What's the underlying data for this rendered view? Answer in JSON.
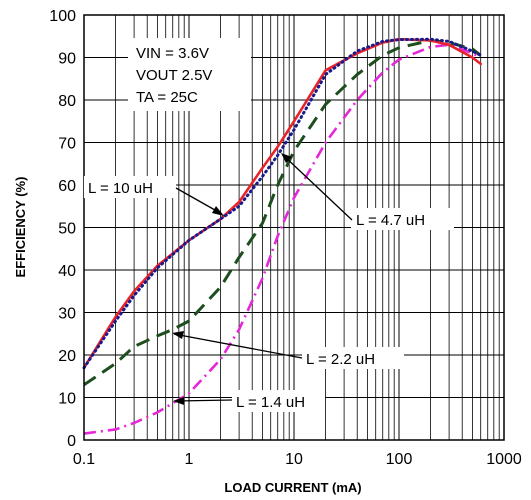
{
  "chart_data": {
    "type": "line",
    "title": "",
    "xlabel": "LOAD CURRENT (mA)",
    "ylabel": "EFFICIENCY (%)",
    "xscale": "log",
    "xlim": [
      0.1,
      1000
    ],
    "ylim": [
      0,
      100
    ],
    "x_ticks": [
      "0.1",
      "1",
      "10",
      "100",
      "1000"
    ],
    "y_ticks": [
      "0",
      "10",
      "20",
      "30",
      "40",
      "50",
      "60",
      "70",
      "80",
      "90",
      "100"
    ],
    "grid": true,
    "conditions": [
      "VIN = 3.6V",
      "VOUT 2.5V",
      "TA = 25C"
    ],
    "series": [
      {
        "name": "L = 10 uH",
        "color": "#e8232a",
        "style": "solid",
        "points": [
          [
            0.1,
            17
          ],
          [
            0.2,
            29
          ],
          [
            0.3,
            35
          ],
          [
            0.5,
            41
          ],
          [
            1,
            47
          ],
          [
            2,
            52
          ],
          [
            3,
            56
          ],
          [
            5,
            64
          ],
          [
            7,
            69
          ],
          [
            10,
            75
          ],
          [
            20,
            87
          ],
          [
            40,
            91
          ],
          [
            70,
            93.5
          ],
          [
            100,
            94.3
          ],
          [
            200,
            94
          ],
          [
            300,
            93
          ],
          [
            500,
            90
          ],
          [
            600,
            88.5
          ]
        ]
      },
      {
        "name": "L = 4.7 uH",
        "color": "#1a1a8c",
        "style": "dotted",
        "points": [
          [
            0.1,
            17
          ],
          [
            0.2,
            28
          ],
          [
            0.3,
            34
          ],
          [
            0.5,
            40.5
          ],
          [
            1,
            47
          ],
          [
            2,
            52
          ],
          [
            3,
            55
          ],
          [
            5,
            62
          ],
          [
            7,
            67
          ],
          [
            10,
            73
          ],
          [
            20,
            86
          ],
          [
            40,
            91.5
          ],
          [
            70,
            93.8
          ],
          [
            100,
            94.2
          ],
          [
            200,
            94.3
          ],
          [
            300,
            93.8
          ],
          [
            500,
            91.5
          ],
          [
            600,
            90.5
          ]
        ]
      },
      {
        "name": "L = 2.2 uH",
        "color": "#1e4d1e",
        "style": "dashed",
        "points": [
          [
            0.1,
            13
          ],
          [
            0.2,
            18
          ],
          [
            0.3,
            22
          ],
          [
            0.5,
            24.5
          ],
          [
            0.7,
            26
          ],
          [
            1,
            28
          ],
          [
            2,
            36
          ],
          [
            3,
            43
          ],
          [
            5,
            51
          ],
          [
            7,
            60
          ],
          [
            10,
            68
          ],
          [
            20,
            79
          ],
          [
            40,
            86
          ],
          [
            70,
            90.5
          ],
          [
            100,
            92.3
          ],
          [
            200,
            94
          ],
          [
            300,
            93.5
          ],
          [
            500,
            92
          ],
          [
            600,
            90.5
          ]
        ]
      },
      {
        "name": "L = 1.4 uH",
        "color": "#e627d8",
        "style": "dashdot",
        "points": [
          [
            0.1,
            1.5
          ],
          [
            0.2,
            2.5
          ],
          [
            0.3,
            4
          ],
          [
            0.5,
            6.5
          ],
          [
            0.8,
            9.5
          ],
          [
            1,
            11
          ],
          [
            2,
            19
          ],
          [
            3,
            26
          ],
          [
            5,
            38
          ],
          [
            7,
            48
          ],
          [
            10,
            57
          ],
          [
            20,
            70
          ],
          [
            40,
            80
          ],
          [
            70,
            86.5
          ],
          [
            100,
            89.5
          ],
          [
            200,
            92.5
          ],
          [
            300,
            93
          ],
          [
            500,
            91
          ],
          [
            600,
            90
          ]
        ]
      }
    ]
  }
}
